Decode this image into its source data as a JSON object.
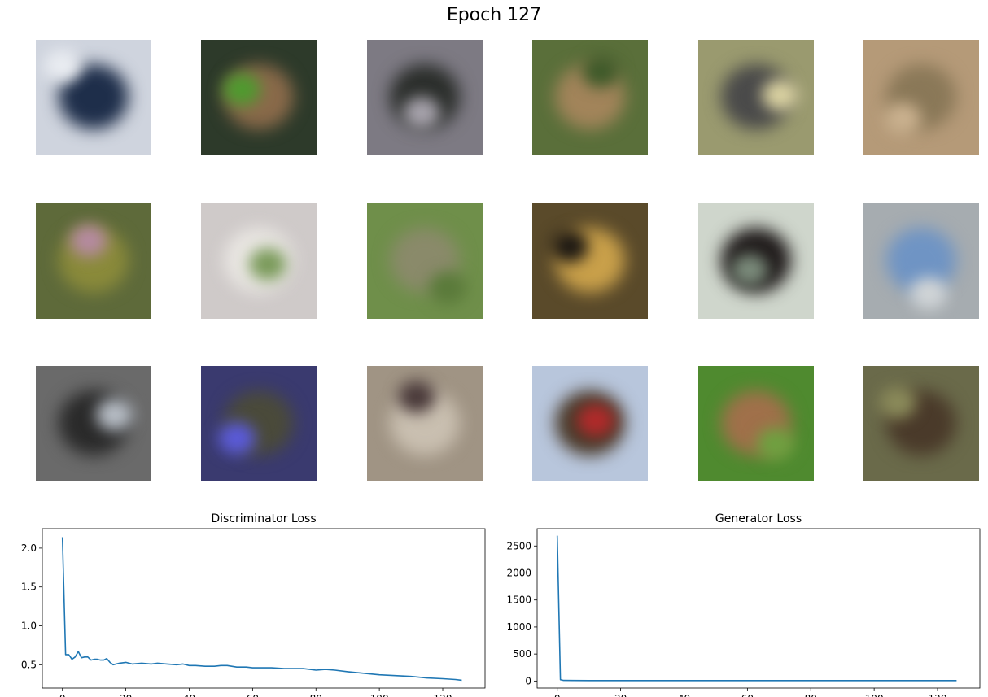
{
  "figure": {
    "title": "Epoch 127"
  },
  "samples": [
    {
      "bg": "#cfd4de",
      "fg": "#1e2e4a",
      "fg2": "#e9ecf1"
    },
    {
      "bg": "#2d3a2a",
      "fg": "#8a6a4a",
      "fg2": "#4f9a2f"
    },
    {
      "bg": "#7d7a83",
      "fg": "#2b2e2b",
      "fg2": "#a6a2ab"
    },
    {
      "bg": "#5a6f3a",
      "fg": "#a2845a",
      "fg2": "#3f5a2a"
    },
    {
      "bg": "#9a9a6f",
      "fg": "#4a4a4a",
      "fg2": "#d8d0a0"
    },
    {
      "bg": "#b59a78",
      "fg": "#8a7858",
      "fg2": "#c9b08e"
    },
    {
      "bg": "#5e6a3a",
      "fg": "#8a8a3a",
      "fg2": "#b58aa0"
    },
    {
      "bg": "#cfcac9",
      "fg": "#e9e6e2",
      "fg2": "#7a9a5a"
    },
    {
      "bg": "#6f8f4a",
      "fg": "#8a8a6a",
      "fg2": "#5a7a3a"
    },
    {
      "bg": "#5a4a2a",
      "fg": "#c9a04a",
      "fg2": "#1f1a14"
    },
    {
      "bg": "#cfd6cc",
      "fg": "#1f1a1a",
      "fg2": "#7a8a7a"
    },
    {
      "bg": "#a6acb0",
      "fg": "#6f94c4",
      "fg2": "#d0d4d6"
    },
    {
      "bg": "#6a6a6a",
      "fg": "#2a2a2a",
      "fg2": "#b6bcc4"
    },
    {
      "bg": "#3a3a6f",
      "fg": "#4a4a3a",
      "fg2": "#5a5ad8"
    },
    {
      "bg": "#a09484",
      "fg": "#c9bfb0",
      "fg2": "#4a3a3a"
    },
    {
      "bg": "#b8c6dc",
      "fg": "#4a3a2a",
      "fg2": "#b02a2a"
    },
    {
      "bg": "#4f8a2f",
      "fg": "#a0704a",
      "fg2": "#6fa040"
    },
    {
      "bg": "#6a6a4a",
      "fg": "#4a3a2a",
      "fg2": "#8a8a5a"
    }
  ],
  "chart_data": [
    {
      "type": "line",
      "title": "Discriminator Loss",
      "xlabel": "",
      "ylabel": "",
      "xlim": [
        -6.35,
        133.35
      ],
      "ylim": [
        0.2,
        2.25
      ],
      "xticks": [
        0,
        20,
        40,
        60,
        80,
        100,
        120
      ],
      "yticks": [
        0.5,
        1.0,
        1.5,
        2.0
      ],
      "ytick_labels": [
        "0.5",
        "1.0",
        "1.5",
        "2.0"
      ],
      "color": "#1f77b4",
      "series": [
        {
          "x": [
            0,
            1,
            2,
            3,
            4,
            5,
            6,
            7,
            8,
            9,
            10,
            11,
            12,
            13,
            14,
            15,
            16,
            18,
            20,
            22,
            25,
            28,
            30,
            33,
            36,
            38,
            40,
            42,
            45,
            48,
            50,
            52,
            55,
            58,
            60,
            63,
            66,
            70,
            73,
            76,
            80,
            83,
            86,
            90,
            95,
            100,
            105,
            110,
            115,
            120,
            124,
            126
          ],
          "y": [
            2.14,
            0.63,
            0.63,
            0.57,
            0.6,
            0.67,
            0.59,
            0.6,
            0.6,
            0.56,
            0.57,
            0.57,
            0.56,
            0.56,
            0.58,
            0.53,
            0.5,
            0.52,
            0.53,
            0.51,
            0.52,
            0.51,
            0.52,
            0.51,
            0.5,
            0.51,
            0.49,
            0.49,
            0.48,
            0.48,
            0.49,
            0.49,
            0.47,
            0.47,
            0.46,
            0.46,
            0.46,
            0.45,
            0.45,
            0.45,
            0.43,
            0.44,
            0.43,
            0.41,
            0.39,
            0.37,
            0.36,
            0.35,
            0.33,
            0.32,
            0.31,
            0.3
          ]
        }
      ]
    },
    {
      "type": "line",
      "title": "Generator Loss",
      "xlabel": "",
      "ylabel": "",
      "xlim": [
        -6.35,
        133.35
      ],
      "ylim": [
        -130,
        2820
      ],
      "xticks": [
        0,
        20,
        40,
        60,
        80,
        100,
        120
      ],
      "yticks": [
        0,
        500,
        1000,
        1500,
        2000,
        2500
      ],
      "ytick_labels": [
        "0",
        "500",
        "1000",
        "1500",
        "2000",
        "2500"
      ],
      "color": "#1f77b4",
      "series": [
        {
          "x": [
            0,
            1,
            2,
            5,
            10,
            20,
            40,
            60,
            80,
            100,
            120,
            126
          ],
          "y": [
            2690,
            25,
            12,
            10,
            9,
            9,
            8,
            8,
            8,
            8,
            8,
            8
          ]
        }
      ]
    }
  ]
}
